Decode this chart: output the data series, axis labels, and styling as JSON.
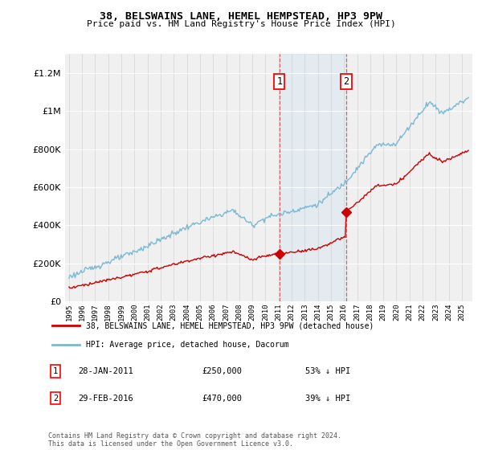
{
  "title": "38, BELSWAINS LANE, HEMEL HEMPSTEAD, HP3 9PW",
  "subtitle": "Price paid vs. HM Land Registry's House Price Index (HPI)",
  "ylim": [
    0,
    1300000
  ],
  "yticks": [
    0,
    200000,
    400000,
    600000,
    800000,
    1000000,
    1200000
  ],
  "ytick_labels": [
    "£0",
    "£200K",
    "£400K",
    "£600K",
    "£800K",
    "£1M",
    "£1.2M"
  ],
  "hpi_color": "#7bb8d4",
  "sold_color": "#cc0000",
  "marker1_date": 2011.07,
  "marker1_price": 250000,
  "marker1_label": "28-JAN-2011",
  "marker1_amount": "£250,000",
  "marker1_pct": "53% ↓ HPI",
  "marker2_date": 2016.17,
  "marker2_price": 470000,
  "marker2_label": "29-FEB-2016",
  "marker2_amount": "£470,000",
  "marker2_pct": "39% ↓ HPI",
  "legend_line1": "38, BELSWAINS LANE, HEMEL HEMPSTEAD, HP3 9PW (detached house)",
  "legend_line2": "HPI: Average price, detached house, Dacorum",
  "footnote": "Contains HM Land Registry data © Crown copyright and database right 2024.\nThis data is licensed under the Open Government Licence v3.0.",
  "background_color": "#ffffff",
  "plot_bg_color": "#f0f0f0",
  "shade_color": "#cce0f0",
  "xlim_start": 1994.7,
  "xlim_end": 2025.8
}
